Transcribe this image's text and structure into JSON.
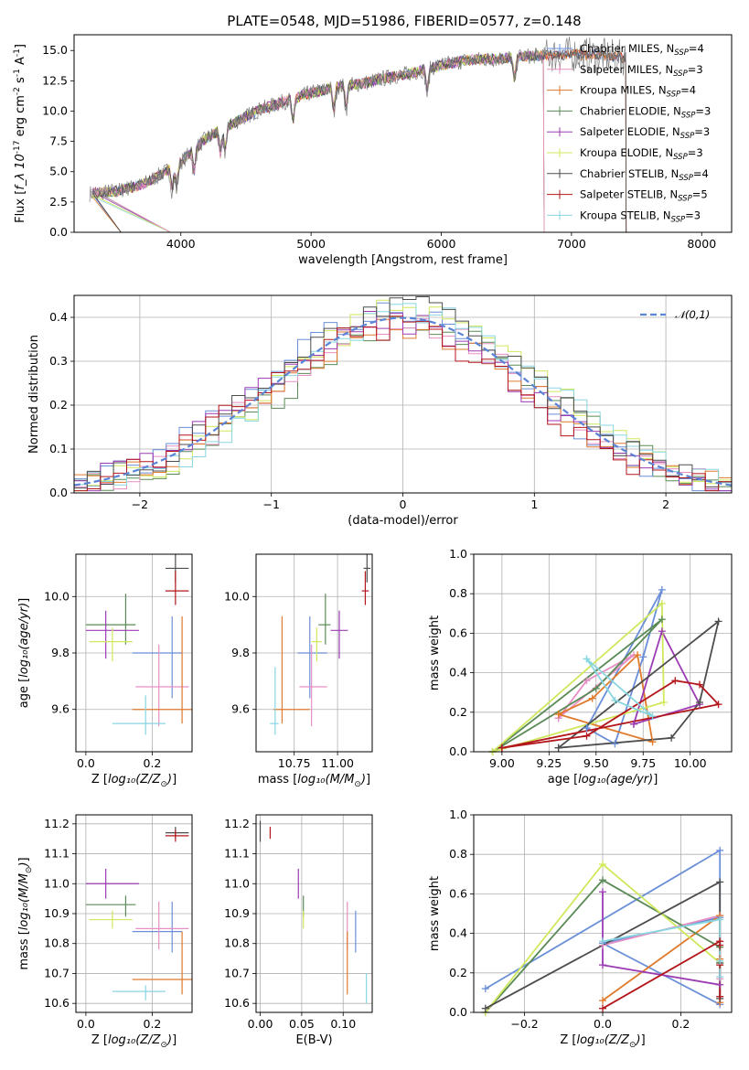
{
  "figure": {
    "title": "PLATE=0548, MJD=51986, FIBERID=0577, z=0.148"
  },
  "models": [
    {
      "name": "Chabrier MILES, N$_{SSP}$=4",
      "label": "Chabrier MILES, N",
      "sub": "SSP",
      "suffix": "=4",
      "color": "#6a8fd8"
    },
    {
      "name": "Salpeter MILES, N$_{SSP}$=3",
      "label": "Salpeter MILES, N",
      "sub": "SSP",
      "suffix": "=3",
      "color": "#e78fc4"
    },
    {
      "name": "Kroupa MILES, N$_{SSP}$=4",
      "label": "Kroupa MILES, N",
      "sub": "SSP",
      "suffix": "=4",
      "color": "#e07a2c"
    },
    {
      "name": "Chabrier ELODIE, N$_{SSP}$=3",
      "label": "Chabrier ELODIE, N",
      "sub": "SSP",
      "suffix": "=3",
      "color": "#5a8a55"
    },
    {
      "name": "Salpeter ELODIE, N$_{SSP}$=3",
      "label": "Salpeter ELODIE, N",
      "sub": "SSP",
      "suffix": "=3",
      "color": "#9b3bb3"
    },
    {
      "name": "Kroupa ELODIE, N$_{SSP}$=3",
      "label": "Kroupa ELODIE, N",
      "sub": "SSP",
      "suffix": "=3",
      "color": "#cfe85c"
    },
    {
      "name": "Chabrier STELIB, N$_{SSP}$=4",
      "label": "Chabrier STELIB, N",
      "sub": "SSP",
      "suffix": "=4",
      "color": "#4d4d4d"
    },
    {
      "name": "Salpeter STELIB, N$_{SSP}$=5",
      "label": "Salpeter STELIB, N",
      "sub": "SSP",
      "suffix": "=5",
      "color": "#b3161b"
    },
    {
      "name": "Kroupa STELIB, N$_{SSP}$=3",
      "label": "Kroupa STELIB, N",
      "sub": "SSP",
      "suffix": "=3",
      "color": "#88d6e0"
    }
  ],
  "colors": {
    "data_spectrum": "#7f7f7f",
    "gaussian": "#5b84d6",
    "grid": "#b0b0b0"
  },
  "chart_data": [
    {
      "id": "spectrum",
      "type": "line",
      "xlabel": "wavelength [Angstrom, rest frame]",
      "ylabel": "Flux [$f_\\lambda 10^{-17}$ erg cm$^{-2}$ s$^{-1}$ A$^{-1}$]",
      "xlim": [
        3180,
        8230
      ],
      "ylim": [
        0,
        16.3
      ],
      "xticks": [
        4000,
        5000,
        6000,
        7000,
        8000
      ],
      "yticks": [
        0.0,
        2.5,
        5.0,
        7.5,
        10.0,
        12.5,
        15.0
      ],
      "continuum": [
        [
          3300,
          3.2
        ],
        [
          3500,
          3.4
        ],
        [
          3700,
          3.9
        ],
        [
          3900,
          5.1
        ],
        [
          4000,
          5.8
        ],
        [
          4200,
          7.8
        ],
        [
          4400,
          9.0
        ],
        [
          4600,
          10.1
        ],
        [
          4800,
          10.8
        ],
        [
          5000,
          11.5
        ],
        [
          5200,
          12.0
        ],
        [
          5400,
          12.3
        ],
        [
          5600,
          12.8
        ],
        [
          5800,
          13.2
        ],
        [
          6000,
          13.8
        ],
        [
          6200,
          14.2
        ],
        [
          6400,
          14.3
        ],
        [
          6600,
          14.5
        ],
        [
          6800,
          14.6
        ],
        [
          7000,
          14.7
        ],
        [
          7200,
          14.6
        ],
        [
          7400,
          14.4
        ]
      ],
      "model_ranges": [
        [
          3320,
          7420
        ],
        [
          3320,
          6790
        ],
        [
          3320,
          7420
        ],
        [
          3320,
          6790
        ],
        [
          3320,
          6790
        ],
        [
          3320,
          6790
        ],
        [
          3320,
          7420
        ],
        [
          3320,
          7420
        ],
        [
          3320,
          6790
        ]
      ],
      "model_drops_low": [
        3540,
        3920,
        3540,
        3920,
        3920,
        3920,
        3540,
        3540,
        3920
      ],
      "grid": false,
      "legend_loc": "upper right"
    },
    {
      "id": "residuals",
      "type": "histogram",
      "xlabel": "(data-model)/error",
      "ylabel": "Normed distribution",
      "xlim": [
        -2.5,
        2.5
      ],
      "ylim": [
        0,
        0.45
      ],
      "xticks": [
        -2,
        -1,
        0,
        1,
        2
      ],
      "yticks": [
        0.0,
        0.1,
        0.2,
        0.3,
        0.4
      ],
      "gaussian": {
        "label": "$\\mathcal{N}(0,1)$",
        "mu": 0,
        "sigma": 1
      },
      "bin_width": 0.1,
      "grid": true,
      "legend_loc": "upper right"
    },
    {
      "id": "age-vs-Z",
      "type": "scatter",
      "xlabel": "Z [$\\log_{10}(Z/Z_\\odot)$]",
      "ylabel": "age  [$\\log_{10}(age/yr)$]",
      "xlim": [
        -0.03,
        0.32
      ],
      "ylim": [
        9.45,
        10.15
      ],
      "xticks": [
        0.0,
        0.2
      ],
      "yticks": [
        9.6,
        9.8,
        10.0
      ],
      "points": [
        {
          "x": 0.26,
          "y": 9.8,
          "xerr": [
            0.12,
            0.03
          ],
          "yerr": [
            0.16,
            0.13
          ]
        },
        {
          "x": 0.22,
          "y": 9.68,
          "xerr": [
            0.07,
            0.09
          ],
          "yerr": [
            0.14,
            0.15
          ]
        },
        {
          "x": 0.29,
          "y": 9.6,
          "xerr": [
            0.15,
            0.03
          ],
          "yerr": [
            0.05,
            0.33
          ]
        },
        {
          "x": 0.12,
          "y": 9.9,
          "xerr": [
            0.12,
            0.03
          ],
          "yerr": [
            0.07,
            0.11
          ]
        },
        {
          "x": 0.06,
          "y": 9.88,
          "xerr": [
            0.06,
            0.1
          ],
          "yerr": [
            0.1,
            0.07
          ]
        },
        {
          "x": 0.08,
          "y": 9.84,
          "xerr": [
            0.07,
            0.06
          ],
          "yerr": [
            0.07,
            0.05
          ]
        },
        {
          "x": 0.27,
          "y": 10.1,
          "xerr": [
            0.03,
            0.04
          ],
          "yerr": [
            0.05,
            0.05
          ]
        },
        {
          "x": 0.27,
          "y": 10.02,
          "xerr": [
            0.03,
            0.04
          ],
          "yerr": [
            0.05,
            0.07
          ]
        },
        {
          "x": 0.18,
          "y": 9.55,
          "xerr": [
            0.1,
            0.06
          ],
          "yerr": [
            0.04,
            0.1
          ]
        }
      ],
      "grid": true
    },
    {
      "id": "age-vs-mass",
      "type": "scatter",
      "xlabel": "mass [$\\log_{10}(M/M_\\odot)$]",
      "ylabel": "",
      "xlim": [
        10.53,
        11.2
      ],
      "ylim": [
        9.45,
        10.15
      ],
      "xticks": [
        10.75,
        11.0
      ],
      "yticks": [
        9.6,
        9.8,
        10.0
      ],
      "points": [
        {
          "x": 10.84,
          "y": 9.8,
          "xerr": [
            0.07,
            0.1
          ],
          "yerr": [
            0.16,
            0.13
          ]
        },
        {
          "x": 10.85,
          "y": 9.68,
          "xerr": [
            0.07,
            0.09
          ],
          "yerr": [
            0.14,
            0.15
          ]
        },
        {
          "x": 10.68,
          "y": 9.6,
          "xerr": [
            0.05,
            0.16
          ],
          "yerr": [
            0.05,
            0.33
          ]
        },
        {
          "x": 10.93,
          "y": 9.9,
          "xerr": [
            0.04,
            0.03
          ],
          "yerr": [
            0.07,
            0.11
          ]
        },
        {
          "x": 11.01,
          "y": 9.88,
          "xerr": [
            0.05,
            0.05
          ],
          "yerr": [
            0.1,
            0.07
          ]
        },
        {
          "x": 10.88,
          "y": 9.84,
          "xerr": [
            0.03,
            0.03
          ],
          "yerr": [
            0.07,
            0.05
          ]
        },
        {
          "x": 11.17,
          "y": 10.1,
          "xerr": [
            0.02,
            0.02
          ],
          "yerr": [
            0.05,
            0.05
          ]
        },
        {
          "x": 11.16,
          "y": 10.02,
          "xerr": [
            0.02,
            0.02
          ],
          "yerr": [
            0.05,
            0.07
          ]
        },
        {
          "x": 10.64,
          "y": 9.55,
          "xerr": [
            0.03,
            0.02
          ],
          "yerr": [
            0.04,
            0.2
          ]
        }
      ],
      "grid": true
    },
    {
      "id": "weight-vs-age",
      "type": "line",
      "xlabel": "age  [$\\log_{10}(age/yr)$]",
      "ylabel": "mass weight",
      "xlim": [
        8.85,
        10.22
      ],
      "ylim": [
        0,
        1.0
      ],
      "xticks": [
        9.0,
        9.25,
        9.5,
        9.75,
        10.0
      ],
      "yticks": [
        0.0,
        0.2,
        0.4,
        0.6,
        0.8,
        1.0
      ],
      "series": [
        [
          [
            9.45,
            0.12
          ],
          [
            9.6,
            0.04
          ],
          [
            9.75,
            0.48
          ],
          [
            9.85,
            0.82
          ],
          [
            9.45,
            0.12
          ]
        ],
        [
          [
            9.3,
            0.17
          ],
          [
            9.45,
            0.36
          ],
          [
            9.7,
            0.49
          ],
          [
            9.3,
            0.17
          ]
        ],
        [
          [
            9.3,
            0.19
          ],
          [
            9.48,
            0.27
          ],
          [
            9.72,
            0.49
          ],
          [
            9.8,
            0.05
          ],
          [
            9.3,
            0.19
          ]
        ],
        [
          [
            8.95,
            0.0
          ],
          [
            9.5,
            0.32
          ],
          [
            9.85,
            0.67
          ],
          [
            8.95,
            0.0
          ]
        ],
        [
          [
            9.7,
            0.14
          ],
          [
            9.85,
            0.61
          ],
          [
            10.05,
            0.24
          ],
          [
            9.7,
            0.14
          ]
        ],
        [
          [
            8.95,
            0.0
          ],
          [
            9.85,
            0.75
          ],
          [
            9.86,
            0.25
          ],
          [
            8.95,
            0.0
          ]
        ],
        [
          [
            9.3,
            0.02
          ],
          [
            9.9,
            0.07
          ],
          [
            10.05,
            0.25
          ],
          [
            10.15,
            0.66
          ],
          [
            9.3,
            0.02
          ]
        ],
        [
          [
            9.0,
            0.02
          ],
          [
            9.45,
            0.08
          ],
          [
            9.92,
            0.36
          ],
          [
            10.05,
            0.34
          ],
          [
            10.15,
            0.24
          ],
          [
            9.0,
            0.02
          ]
        ],
        [
          [
            9.45,
            0.47
          ],
          [
            9.6,
            0.26
          ],
          [
            9.8,
            0.18
          ],
          [
            9.45,
            0.47
          ]
        ]
      ],
      "grid": true
    },
    {
      "id": "mass-vs-Z",
      "type": "scatter",
      "xlabel": "Z [$\\log_{10}(Z/Z_\\odot)$]",
      "ylabel": "mass [$\\log_{10}(M/M_\\odot)$]",
      "xlim": [
        -0.03,
        0.32
      ],
      "ylim": [
        10.57,
        11.23
      ],
      "xticks": [
        0.0,
        0.2
      ],
      "yticks": [
        10.6,
        10.7,
        10.8,
        10.9,
        11.0,
        11.1,
        11.2
      ],
      "points": [
        {
          "x": 0.26,
          "y": 10.84,
          "xerr": [
            0.12,
            0.03
          ],
          "yerr": [
            0.07,
            0.1
          ]
        },
        {
          "x": 0.22,
          "y": 10.85,
          "xerr": [
            0.07,
            0.09
          ],
          "yerr": [
            0.07,
            0.09
          ]
        },
        {
          "x": 0.29,
          "y": 10.68,
          "xerr": [
            0.15,
            0.03
          ],
          "yerr": [
            0.05,
            0.16
          ]
        },
        {
          "x": 0.12,
          "y": 10.93,
          "xerr": [
            0.12,
            0.03
          ],
          "yerr": [
            0.04,
            0.03
          ]
        },
        {
          "x": 0.06,
          "y": 11.0,
          "xerr": [
            0.06,
            0.1
          ],
          "yerr": [
            0.05,
            0.05
          ]
        },
        {
          "x": 0.08,
          "y": 10.88,
          "xerr": [
            0.07,
            0.06
          ],
          "yerr": [
            0.03,
            0.03
          ]
        },
        {
          "x": 0.27,
          "y": 11.17,
          "xerr": [
            0.03,
            0.04
          ],
          "yerr": [
            0.02,
            0.02
          ]
        },
        {
          "x": 0.27,
          "y": 11.16,
          "xerr": [
            0.03,
            0.04
          ],
          "yerr": [
            0.02,
            0.02
          ]
        },
        {
          "x": 0.18,
          "y": 10.64,
          "xerr": [
            0.1,
            0.06
          ],
          "yerr": [
            0.03,
            0.02
          ]
        }
      ],
      "grid": true
    },
    {
      "id": "mass-vs-ebv",
      "type": "scatter",
      "xlabel": "E(B-V)",
      "ylabel": "",
      "xlim": [
        -0.005,
        0.135
      ],
      "ylim": [
        10.57,
        11.23
      ],
      "xticks": [
        0.0,
        0.05,
        0.1
      ],
      "yticks": [
        10.6,
        10.7,
        10.8,
        10.9,
        11.0,
        11.1,
        11.2
      ],
      "points": [
        {
          "x": 0.115,
          "y": 10.84,
          "yerr": [
            0.07,
            0.07
          ]
        },
        {
          "x": 0.105,
          "y": 10.85,
          "yerr": [
            0.07,
            0.09
          ]
        },
        {
          "x": 0.105,
          "y": 10.68,
          "yerr": [
            0.05,
            0.16
          ]
        },
        {
          "x": 0.052,
          "y": 10.93,
          "yerr": [
            0.04,
            0.03
          ]
        },
        {
          "x": 0.046,
          "y": 11.0,
          "yerr": [
            0.05,
            0.05
          ]
        },
        {
          "x": 0.052,
          "y": 10.88,
          "yerr": [
            0.03,
            0.03
          ]
        },
        {
          "x": 0.0,
          "y": 11.17,
          "yerr": [
            0.03,
            0.04
          ]
        },
        {
          "x": 0.012,
          "y": 11.17,
          "yerr": [
            0.02,
            0.02
          ]
        },
        {
          "x": 0.128,
          "y": 10.65,
          "yerr": [
            0.05,
            0.05
          ]
        }
      ],
      "grid": true
    },
    {
      "id": "weight-vs-Z",
      "type": "line",
      "xlabel": "Z [$\\log_{10}(Z/Z_\\odot)$]",
      "ylabel": "mass weight",
      "xlim": [
        -0.33,
        0.33
      ],
      "ylim": [
        0,
        1.0
      ],
      "xticks": [
        -0.2,
        0.0,
        0.2
      ],
      "yticks": [
        0.0,
        0.2,
        0.4,
        0.6,
        0.8,
        1.0
      ],
      "series": [
        [
          [
            -0.3,
            0.12
          ],
          [
            0.3,
            0.82
          ],
          [
            0.3,
            0.04
          ],
          [
            0.0,
            0.35
          ],
          [
            0.3,
            0.48
          ]
        ],
        [
          [
            0.0,
            0.34
          ],
          [
            0.3,
            0.49
          ],
          [
            0.3,
            0.17
          ]
        ],
        [
          [
            0.0,
            0.06
          ],
          [
            0.3,
            0.49
          ],
          [
            0.3,
            0.27
          ],
          [
            0.3,
            0.05
          ]
        ],
        [
          [
            -0.3,
            0.0
          ],
          [
            0.0,
            0.67
          ],
          [
            0.3,
            0.33
          ]
        ],
        [
          [
            0.0,
            0.61
          ],
          [
            0.0,
            0.24
          ],
          [
            0.3,
            0.14
          ]
        ],
        [
          [
            -0.3,
            0.0
          ],
          [
            0.0,
            0.75
          ],
          [
            0.3,
            0.25
          ]
        ],
        [
          [
            -0.3,
            0.02
          ],
          [
            0.3,
            0.66
          ],
          [
            0.3,
            0.25
          ],
          [
            0.3,
            0.07
          ]
        ],
        [
          [
            0.0,
            0.02
          ],
          [
            0.3,
            0.36
          ],
          [
            0.3,
            0.34
          ],
          [
            0.3,
            0.24
          ],
          [
            0.3,
            0.08
          ]
        ],
        [
          [
            0.0,
            0.36
          ],
          [
            0.3,
            0.47
          ],
          [
            0.3,
            0.26
          ],
          [
            0.3,
            0.18
          ]
        ]
      ],
      "grid": true
    }
  ]
}
